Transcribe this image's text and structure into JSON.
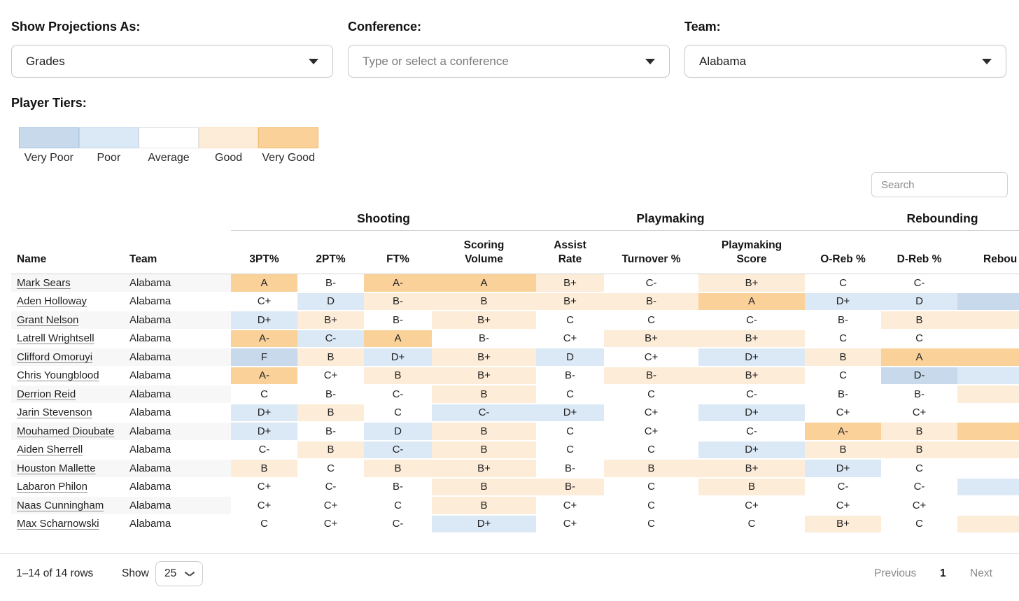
{
  "filters": {
    "projections": {
      "label": "Show Projections As:",
      "value": "Grades"
    },
    "conference": {
      "label": "Conference:",
      "placeholder": "Type or select a conference"
    },
    "team": {
      "label": "Team:",
      "value": "Alabama"
    }
  },
  "tiers": {
    "label": "Player Tiers:",
    "items": [
      {
        "name": "Very Poor",
        "color": "#c7d9eb",
        "border": "#aac6e0"
      },
      {
        "name": "Poor",
        "color": "#dbe8f5",
        "border": "#c3d7ec"
      },
      {
        "name": "Average",
        "color": "#ffffff",
        "border": "#e2e2e2"
      },
      {
        "name": "Good",
        "color": "#fdecd7",
        "border": "#f8dfc0"
      },
      {
        "name": "Very Good",
        "color": "#fad199",
        "border": "#f2bb6e"
      }
    ]
  },
  "search": {
    "placeholder": "Search"
  },
  "table": {
    "groups": [
      {
        "label": "Shooting",
        "span": 4
      },
      {
        "label": "Playmaking",
        "span": 3
      },
      {
        "label": "Rebounding",
        "span": 3
      }
    ],
    "columns": [
      "Name",
      "Team",
      "3PT%",
      "2PT%",
      "FT%",
      "Scoring\nVolume",
      "Assist\nRate",
      "Turnover %",
      "Playmaking\nScore",
      "O-Reb %",
      "D-Reb %",
      "Rebou"
    ],
    "tier_colors": {
      "very_poor": "#c7d9eb",
      "poor": "#dbe8f5",
      "average": "#ffffff",
      "good": "#fdecd7",
      "very_good": "#fad199"
    },
    "rows": [
      {
        "name": "Mark Sears",
        "team": "Alabama",
        "grades": [
          {
            "g": "A",
            "t": "very_good"
          },
          {
            "g": "B-",
            "t": "average"
          },
          {
            "g": "A-",
            "t": "very_good"
          },
          {
            "g": "A",
            "t": "very_good"
          },
          {
            "g": "B+",
            "t": "good"
          },
          {
            "g": "C-",
            "t": "average"
          },
          {
            "g": "B+",
            "t": "good"
          },
          {
            "g": "C",
            "t": "average"
          },
          {
            "g": "C-",
            "t": "average"
          },
          {
            "g": "",
            "t": "average"
          }
        ]
      },
      {
        "name": "Aden Holloway",
        "team": "Alabama",
        "grades": [
          {
            "g": "C+",
            "t": "average"
          },
          {
            "g": "D",
            "t": "poor"
          },
          {
            "g": "B-",
            "t": "good"
          },
          {
            "g": "B",
            "t": "good"
          },
          {
            "g": "B+",
            "t": "good"
          },
          {
            "g": "B-",
            "t": "good"
          },
          {
            "g": "A",
            "t": "very_good"
          },
          {
            "g": "D+",
            "t": "poor"
          },
          {
            "g": "D",
            "t": "poor"
          },
          {
            "g": "",
            "t": "very_poor"
          }
        ]
      },
      {
        "name": "Grant Nelson",
        "team": "Alabama",
        "grades": [
          {
            "g": "D+",
            "t": "poor"
          },
          {
            "g": "B+",
            "t": "good"
          },
          {
            "g": "B-",
            "t": "average"
          },
          {
            "g": "B+",
            "t": "good"
          },
          {
            "g": "C",
            "t": "average"
          },
          {
            "g": "C",
            "t": "average"
          },
          {
            "g": "C-",
            "t": "average"
          },
          {
            "g": "B-",
            "t": "average"
          },
          {
            "g": "B",
            "t": "good"
          },
          {
            "g": "",
            "t": "good"
          }
        ]
      },
      {
        "name": "Latrell Wrightsell",
        "team": "Alabama",
        "grades": [
          {
            "g": "A-",
            "t": "very_good"
          },
          {
            "g": "C-",
            "t": "poor"
          },
          {
            "g": "A",
            "t": "very_good"
          },
          {
            "g": "B-",
            "t": "average"
          },
          {
            "g": "C+",
            "t": "average"
          },
          {
            "g": "B+",
            "t": "good"
          },
          {
            "g": "B+",
            "t": "good"
          },
          {
            "g": "C",
            "t": "average"
          },
          {
            "g": "C",
            "t": "average"
          },
          {
            "g": "",
            "t": "average"
          }
        ]
      },
      {
        "name": "Clifford Omoruyi",
        "team": "Alabama",
        "grades": [
          {
            "g": "F",
            "t": "very_poor"
          },
          {
            "g": "B",
            "t": "good"
          },
          {
            "g": "D+",
            "t": "poor"
          },
          {
            "g": "B+",
            "t": "good"
          },
          {
            "g": "D",
            "t": "poor"
          },
          {
            "g": "C+",
            "t": "average"
          },
          {
            "g": "D+",
            "t": "poor"
          },
          {
            "g": "B",
            "t": "good"
          },
          {
            "g": "A",
            "t": "very_good"
          },
          {
            "g": "",
            "t": "very_good"
          }
        ]
      },
      {
        "name": "Chris Youngblood",
        "team": "Alabama",
        "grades": [
          {
            "g": "A-",
            "t": "very_good"
          },
          {
            "g": "C+",
            "t": "average"
          },
          {
            "g": "B",
            "t": "good"
          },
          {
            "g": "B+",
            "t": "good"
          },
          {
            "g": "B-",
            "t": "average"
          },
          {
            "g": "B-",
            "t": "good"
          },
          {
            "g": "B+",
            "t": "good"
          },
          {
            "g": "C",
            "t": "average"
          },
          {
            "g": "D-",
            "t": "very_poor"
          },
          {
            "g": "",
            "t": "poor"
          }
        ]
      },
      {
        "name": "Derrion Reid",
        "team": "Alabama",
        "grades": [
          {
            "g": "C",
            "t": "average"
          },
          {
            "g": "B-",
            "t": "average"
          },
          {
            "g": "C-",
            "t": "average"
          },
          {
            "g": "B",
            "t": "good"
          },
          {
            "g": "C",
            "t": "average"
          },
          {
            "g": "C",
            "t": "average"
          },
          {
            "g": "C-",
            "t": "average"
          },
          {
            "g": "B-",
            "t": "average"
          },
          {
            "g": "B-",
            "t": "average"
          },
          {
            "g": "",
            "t": "good"
          }
        ]
      },
      {
        "name": "Jarin Stevenson",
        "team": "Alabama",
        "grades": [
          {
            "g": "D+",
            "t": "poor"
          },
          {
            "g": "B",
            "t": "good"
          },
          {
            "g": "C",
            "t": "average"
          },
          {
            "g": "C-",
            "t": "poor"
          },
          {
            "g": "D+",
            "t": "poor"
          },
          {
            "g": "C+",
            "t": "average"
          },
          {
            "g": "D+",
            "t": "poor"
          },
          {
            "g": "C+",
            "t": "average"
          },
          {
            "g": "C+",
            "t": "average"
          },
          {
            "g": "",
            "t": "average"
          }
        ]
      },
      {
        "name": "Mouhamed Dioubate",
        "team": "Alabama",
        "grades": [
          {
            "g": "D+",
            "t": "poor"
          },
          {
            "g": "B-",
            "t": "average"
          },
          {
            "g": "D",
            "t": "poor"
          },
          {
            "g": "B",
            "t": "good"
          },
          {
            "g": "C",
            "t": "average"
          },
          {
            "g": "C+",
            "t": "average"
          },
          {
            "g": "C-",
            "t": "average"
          },
          {
            "g": "A-",
            "t": "very_good"
          },
          {
            "g": "B",
            "t": "good"
          },
          {
            "g": "",
            "t": "very_good"
          }
        ]
      },
      {
        "name": "Aiden Sherrell",
        "team": "Alabama",
        "grades": [
          {
            "g": "C-",
            "t": "average"
          },
          {
            "g": "B",
            "t": "good"
          },
          {
            "g": "C-",
            "t": "poor"
          },
          {
            "g": "B",
            "t": "good"
          },
          {
            "g": "C",
            "t": "average"
          },
          {
            "g": "C",
            "t": "average"
          },
          {
            "g": "D+",
            "t": "poor"
          },
          {
            "g": "B",
            "t": "good"
          },
          {
            "g": "B",
            "t": "good"
          },
          {
            "g": "",
            "t": "good"
          }
        ]
      },
      {
        "name": "Houston Mallette",
        "team": "Alabama",
        "grades": [
          {
            "g": "B",
            "t": "good"
          },
          {
            "g": "C",
            "t": "average"
          },
          {
            "g": "B",
            "t": "good"
          },
          {
            "g": "B+",
            "t": "good"
          },
          {
            "g": "B-",
            "t": "average"
          },
          {
            "g": "B",
            "t": "good"
          },
          {
            "g": "B+",
            "t": "good"
          },
          {
            "g": "D+",
            "t": "poor"
          },
          {
            "g": "C",
            "t": "average"
          },
          {
            "g": "",
            "t": "average"
          }
        ]
      },
      {
        "name": "Labaron Philon",
        "team": "Alabama",
        "grades": [
          {
            "g": "C+",
            "t": "average"
          },
          {
            "g": "C-",
            "t": "average"
          },
          {
            "g": "B-",
            "t": "average"
          },
          {
            "g": "B",
            "t": "good"
          },
          {
            "g": "B-",
            "t": "good"
          },
          {
            "g": "C",
            "t": "average"
          },
          {
            "g": "B",
            "t": "good"
          },
          {
            "g": "C-",
            "t": "average"
          },
          {
            "g": "C-",
            "t": "average"
          },
          {
            "g": "",
            "t": "poor"
          }
        ]
      },
      {
        "name": "Naas Cunningham",
        "team": "Alabama",
        "grades": [
          {
            "g": "C+",
            "t": "average"
          },
          {
            "g": "C+",
            "t": "average"
          },
          {
            "g": "C",
            "t": "average"
          },
          {
            "g": "B",
            "t": "good"
          },
          {
            "g": "C+",
            "t": "average"
          },
          {
            "g": "C",
            "t": "average"
          },
          {
            "g": "C+",
            "t": "average"
          },
          {
            "g": "C+",
            "t": "average"
          },
          {
            "g": "C+",
            "t": "average"
          },
          {
            "g": "",
            "t": "average"
          }
        ]
      },
      {
        "name": "Max Scharnowski",
        "team": "Alabama",
        "grades": [
          {
            "g": "C",
            "t": "average"
          },
          {
            "g": "C+",
            "t": "average"
          },
          {
            "g": "C-",
            "t": "average"
          },
          {
            "g": "D+",
            "t": "poor"
          },
          {
            "g": "C+",
            "t": "average"
          },
          {
            "g": "C",
            "t": "average"
          },
          {
            "g": "C",
            "t": "average"
          },
          {
            "g": "B+",
            "t": "good"
          },
          {
            "g": "C",
            "t": "average"
          },
          {
            "g": "",
            "t": "good"
          }
        ]
      }
    ]
  },
  "footer": {
    "range": "1–14 of 14 rows",
    "show_label": "Show",
    "page_size": "25",
    "previous": "Previous",
    "page": "1",
    "next": "Next"
  }
}
